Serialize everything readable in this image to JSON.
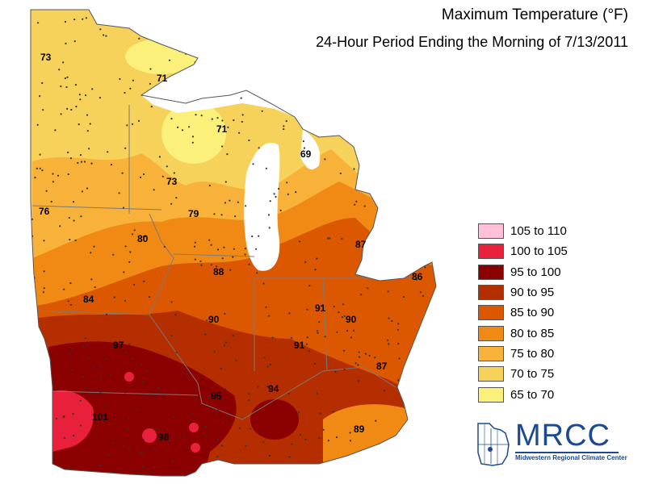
{
  "title": "Maximum Temperature (°F)",
  "subtitle": "24-Hour Period Ending the Morning of 7/13/2011",
  "legend": [
    {
      "label": "105 to 110",
      "color": "#ffc0d8"
    },
    {
      "label": "100 to 105",
      "color": "#e8203c"
    },
    {
      "label": "95 to 100",
      "color": "#8b0000"
    },
    {
      "label": "90 to 95",
      "color": "#b52e00"
    },
    {
      "label": "85 to 90",
      "color": "#dc5800"
    },
    {
      "label": "80 to 85",
      "color": "#f08a14"
    },
    {
      "label": "75 to 80",
      "color": "#f8b23a"
    },
    {
      "label": "70 to 75",
      "color": "#f6d25a"
    },
    {
      "label": "65 to 70",
      "color": "#fbf07a"
    }
  ],
  "values": [
    "73",
    "71",
    "71",
    "69",
    "73",
    "76",
    "79",
    "80",
    "87",
    "88",
    "86",
    "84",
    "90",
    "91",
    "90",
    "97",
    "91",
    "87",
    "95",
    "94",
    "101",
    "98",
    "89"
  ],
  "logo": {
    "name": "MRCC",
    "tagline": "Midwestern Regional Climate Center"
  },
  "water_color": "#ffffff",
  "boundary_color": "#7a7a7a"
}
